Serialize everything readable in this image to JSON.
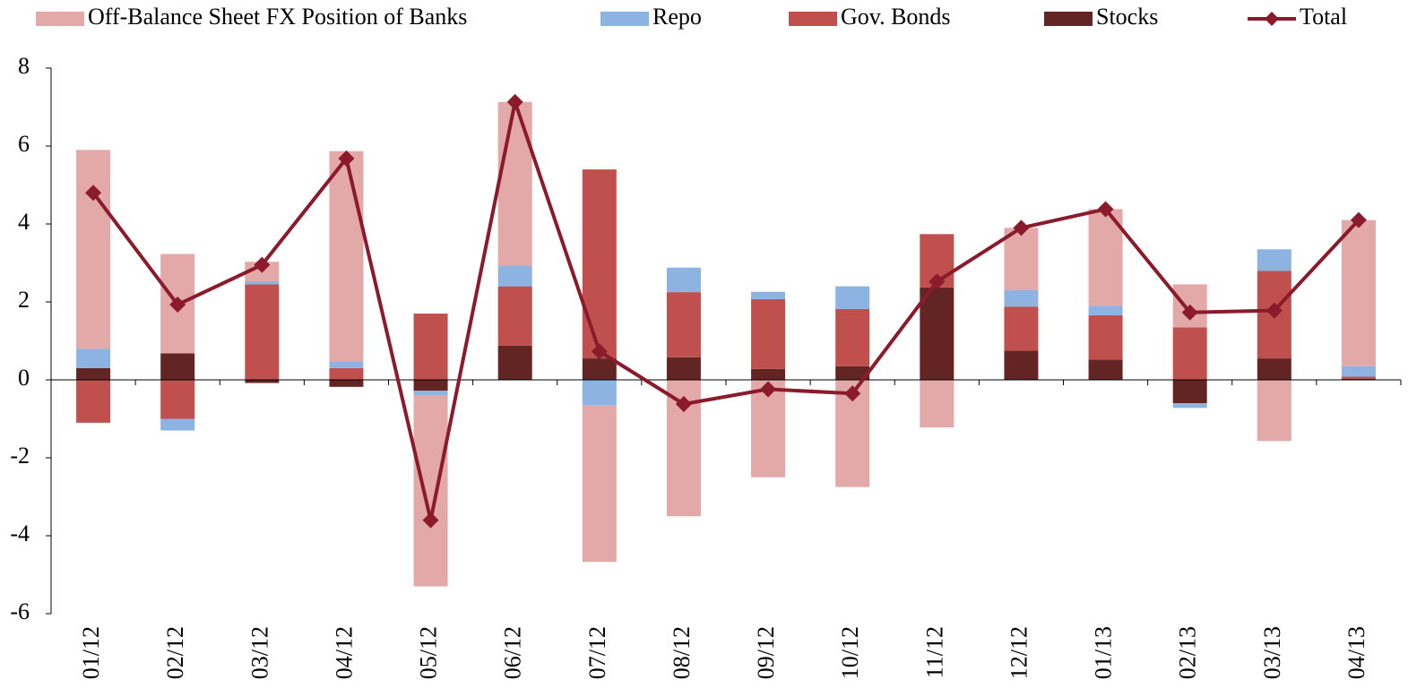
{
  "chart_data": {
    "type": "bar",
    "stacked": true,
    "categories": [
      "01/12",
      "02/12",
      "03/12",
      "04/12",
      "05/12",
      "06/12",
      "07/12",
      "08/12",
      "09/12",
      "10/12",
      "11/12",
      "12/12",
      "01/13",
      "02/13",
      "03/13",
      "04/13"
    ],
    "series": [
      {
        "name": "Stocks",
        "type": "bar",
        "color": "#632523",
        "values": [
          0.3,
          0.68,
          -0.08,
          -0.18,
          -0.28,
          0.88,
          0.55,
          0.58,
          0.28,
          0.35,
          2.37,
          0.75,
          0.52,
          -0.6,
          0.55,
          0.03
        ]
      },
      {
        "name": "Gov. Bonds",
        "type": "bar",
        "color": "#c0504d",
        "values": [
          -1.1,
          -1.0,
          2.45,
          0.3,
          1.7,
          1.52,
          4.85,
          1.67,
          1.79,
          1.47,
          1.37,
          1.13,
          1.14,
          1.35,
          2.25,
          0.05
        ]
      },
      {
        "name": "Repo",
        "type": "bar",
        "color": "#8db3e2",
        "values": [
          0.5,
          -0.3,
          0.08,
          0.18,
          -0.12,
          0.52,
          -0.65,
          0.63,
          0.19,
          0.58,
          0,
          0.42,
          0.24,
          -0.12,
          0.55,
          0.27
        ]
      },
      {
        "name": "Off-Balance Sheet FX Position of Banks",
        "type": "bar",
        "color": "#e3a8a8",
        "values": [
          5.1,
          2.55,
          0.5,
          5.39,
          -4.9,
          4.21,
          -4.02,
          -3.5,
          -2.5,
          -2.75,
          -1.22,
          1.6,
          2.48,
          1.1,
          -1.57,
          3.75
        ]
      },
      {
        "name": "Total",
        "type": "line",
        "color": "#8b1a2b",
        "values": [
          4.8,
          1.93,
          2.95,
          5.68,
          -3.6,
          7.13,
          0.73,
          -0.62,
          -0.24,
          -0.35,
          2.52,
          3.9,
          4.38,
          1.73,
          1.78,
          4.1
        ]
      }
    ],
    "legend_order": [
      3,
      2,
      1,
      0,
      4
    ],
    "ylim": [
      -6,
      8
    ],
    "yticks": [
      -6,
      -4,
      -2,
      0,
      2,
      4,
      6,
      8
    ]
  }
}
